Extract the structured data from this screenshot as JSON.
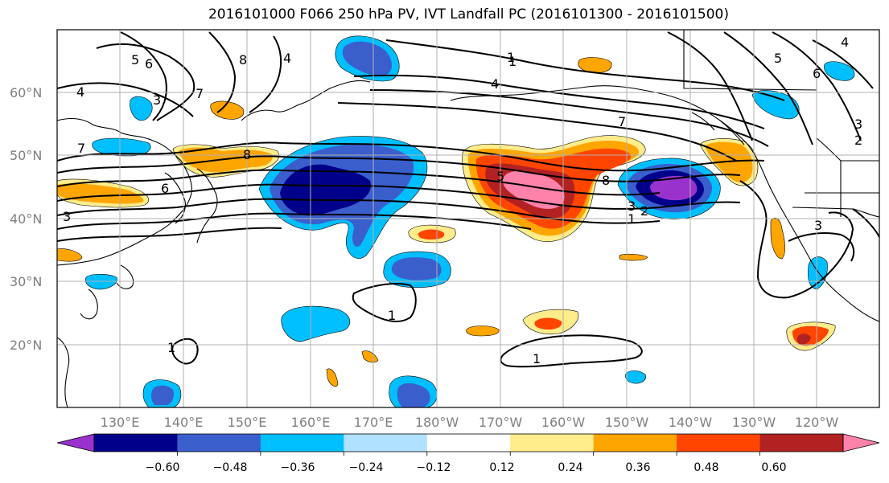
{
  "title": "2016101000 F066 250 hPa PV, IVT Landfall PC (2016101300 - 2016101500)",
  "lat_labels": [
    "60°N",
    "50°N",
    "40°N",
    "30°N",
    "20°N"
  ],
  "lon_labels": [
    "130°E",
    "140°E",
    "150°E",
    "160°E",
    "170°E",
    "180°W",
    "170°W",
    "160°W",
    "150°W",
    "140°W",
    "130°W",
    "120°W"
  ],
  "colorbar": {
    "labels": [
      "−0.60",
      "−0.48",
      "−0.36",
      "−0.24",
      "−0.12",
      "0.12",
      "0.24",
      "0.36",
      "0.48",
      "0.60"
    ],
    "colors": [
      "#9932cc",
      "#00008b",
      "#3a5fcd",
      "#00bfff",
      "#b0e2ff",
      "#ffffff",
      "#ffec8b",
      "#ffa500",
      "#ff4500",
      "#b22222",
      "#ff82ab"
    ]
  },
  "contour_labels": [
    "5",
    "6",
    "8",
    "4",
    "3",
    "7",
    "4",
    "1",
    "4",
    "7",
    "7",
    "8",
    "6",
    "3",
    "5",
    "8",
    "3",
    "2",
    "1",
    "5",
    "6",
    "4",
    "3",
    "2",
    "3",
    "1",
    "1",
    "1",
    "1"
  ]
}
